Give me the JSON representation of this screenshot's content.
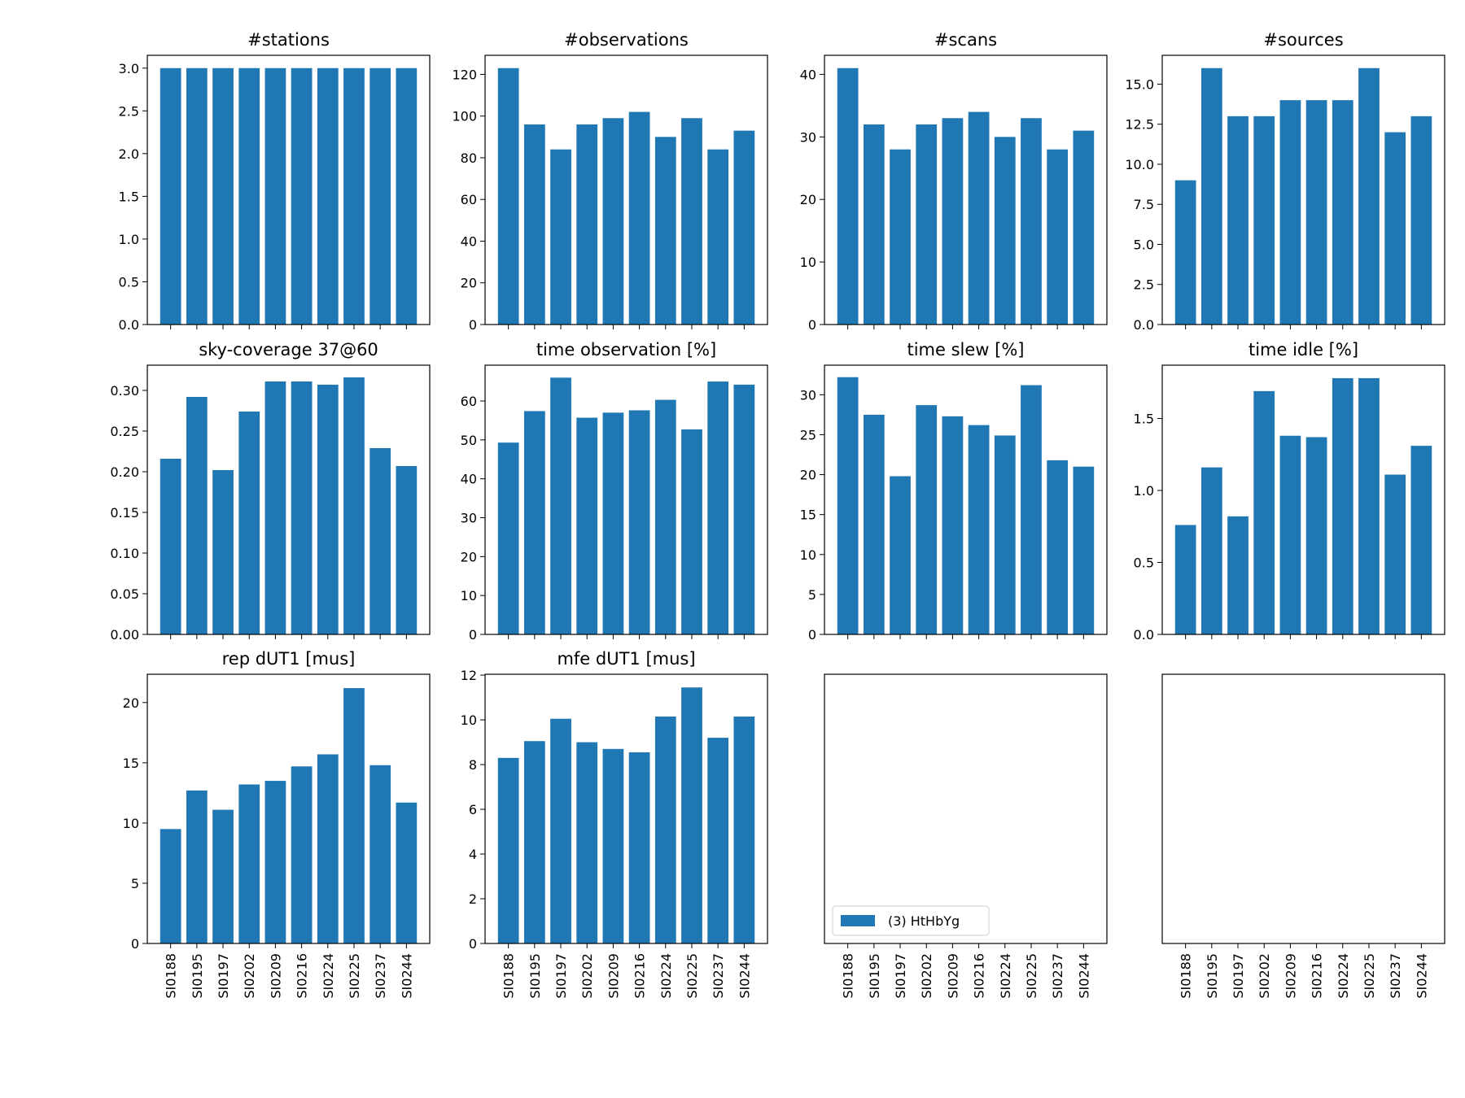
{
  "chart_data": [
    {
      "type": "bar",
      "title": "#stations",
      "color": "#1f77b4",
      "values": [
        3,
        3,
        3,
        3,
        3,
        3,
        3,
        3,
        3,
        3
      ],
      "ylim": [
        0,
        3.15
      ],
      "yticks": [
        {
          "value": 0,
          "label": "0.0"
        },
        0.5,
        {
          "value": 1,
          "label": "1.0"
        },
        1.5,
        {
          "value": 2,
          "label": "2.0"
        },
        2.5,
        {
          "value": 3,
          "label": "3.0"
        }
      ]
    },
    {
      "type": "bar",
      "title": "#observations",
      "color": "#1f77b4",
      "values": [
        123,
        96,
        84,
        96,
        99,
        102,
        90,
        99,
        84,
        93
      ],
      "ylim": [
        0,
        129.15
      ],
      "yticks": [
        0,
        20,
        40,
        60,
        80,
        100,
        120
      ]
    },
    {
      "type": "bar",
      "title": "#scans",
      "color": "#1f77b4",
      "values": [
        41,
        32,
        28,
        32,
        33,
        34,
        30,
        33,
        28,
        31
      ],
      "ylim": [
        0,
        43.05
      ],
      "yticks": [
        0,
        10,
        20,
        30,
        40
      ]
    },
    {
      "type": "bar",
      "title": "#sources",
      "color": "#1f77b4",
      "values": [
        9,
        16,
        13,
        13,
        14,
        14,
        14,
        16,
        12,
        13
      ],
      "ylim": [
        0,
        16.8
      ],
      "yticks": [
        {
          "value": 0,
          "label": "0.0"
        },
        2.5,
        {
          "value": 5,
          "label": "5.0"
        },
        7.5,
        {
          "value": 10,
          "label": "10.0"
        },
        12.5,
        {
          "value": 15,
          "label": "15.0"
        }
      ]
    },
    {
      "type": "bar",
      "title": "sky-coverage 37@60",
      "color": "#1f77b4",
      "values": [
        0.216,
        0.292,
        0.202,
        0.274,
        0.311,
        0.311,
        0.307,
        0.316,
        0.229,
        0.207
      ],
      "ylim": [
        0,
        0.331
      ],
      "yticks": [
        {
          "value": 0,
          "label": "0.00"
        },
        {
          "value": 0.05,
          "label": "0.05"
        },
        {
          "value": 0.1,
          "label": "0.10"
        },
        {
          "value": 0.15,
          "label": "0.15"
        },
        {
          "value": 0.2,
          "label": "0.20"
        },
        {
          "value": 0.25,
          "label": "0.25"
        },
        {
          "value": 0.3,
          "label": "0.30"
        }
      ]
    },
    {
      "type": "bar",
      "title": "time observation [%]",
      "color": "#1f77b4",
      "values": [
        49.3,
        57.4,
        66,
        55.7,
        57,
        57.6,
        60.3,
        52.7,
        65,
        64.2
      ],
      "ylim": [
        0,
        69.2
      ],
      "yticks": [
        0,
        10,
        20,
        30,
        40,
        50,
        60
      ]
    },
    {
      "type": "bar",
      "title": "time slew [%]",
      "color": "#1f77b4",
      "values": [
        32.2,
        27.5,
        19.8,
        28.7,
        27.3,
        26.2,
        24.9,
        31.2,
        21.8,
        21.0
      ],
      "ylim": [
        0,
        33.7
      ],
      "yticks": [
        0,
        5,
        10,
        15,
        20,
        25,
        30
      ]
    },
    {
      "type": "bar",
      "title": "time idle [%]",
      "color": "#1f77b4",
      "values": [
        0.76,
        1.16,
        0.82,
        1.69,
        1.38,
        1.37,
        1.78,
        1.78,
        1.11,
        1.31
      ],
      "ylim": [
        0,
        1.87
      ],
      "yticks": [
        {
          "value": 0,
          "label": "0.0"
        },
        0.5,
        {
          "value": 1,
          "label": "1.0"
        },
        1.5
      ]
    },
    {
      "type": "bar",
      "title": "rep dUT1 [mus]",
      "color": "#1f77b4",
      "values": [
        9.5,
        12.7,
        11.1,
        13.2,
        13.5,
        14.7,
        15.7,
        21.2,
        14.8,
        11.7
      ],
      "ylim": [
        0,
        22.35
      ],
      "yticks": [
        0,
        5,
        10,
        15,
        20
      ],
      "categories": [
        "SI0188",
        "SI0195",
        "SI0197",
        "SI0202",
        "SI0209",
        "SI0216",
        "SI0224",
        "SI0225",
        "SI0237",
        "SI0244"
      ]
    },
    {
      "type": "bar",
      "title": "mfe dUT1 [mus]",
      "color": "#1f77b4",
      "values": [
        8.3,
        9.05,
        10.05,
        9.0,
        8.7,
        8.55,
        10.15,
        11.45,
        9.2,
        10.15
      ],
      "ylim": [
        0,
        12.04
      ],
      "yticks": [
        0,
        2,
        4,
        6,
        8,
        10,
        12
      ],
      "categories": [
        "SI0188",
        "SI0195",
        "SI0197",
        "SI0202",
        "SI0209",
        "SI0216",
        "SI0224",
        "SI0225",
        "SI0237",
        "SI0244"
      ]
    },
    {
      "type": "empty",
      "categories": [
        "SI0188",
        "SI0195",
        "SI0197",
        "SI0202",
        "SI0209",
        "SI0216",
        "SI0224",
        "SI0225",
        "SI0237",
        "SI0244"
      ],
      "legend": {
        "label": "(3) HtHbYg",
        "color": "#1f77b4",
        "corner": "lower left"
      }
    },
    {
      "type": "empty",
      "categories": [
        "SI0188",
        "SI0195",
        "SI0197",
        "SI0202",
        "SI0209",
        "SI0216",
        "SI0224",
        "SI0225",
        "SI0237",
        "SI0244"
      ]
    }
  ]
}
